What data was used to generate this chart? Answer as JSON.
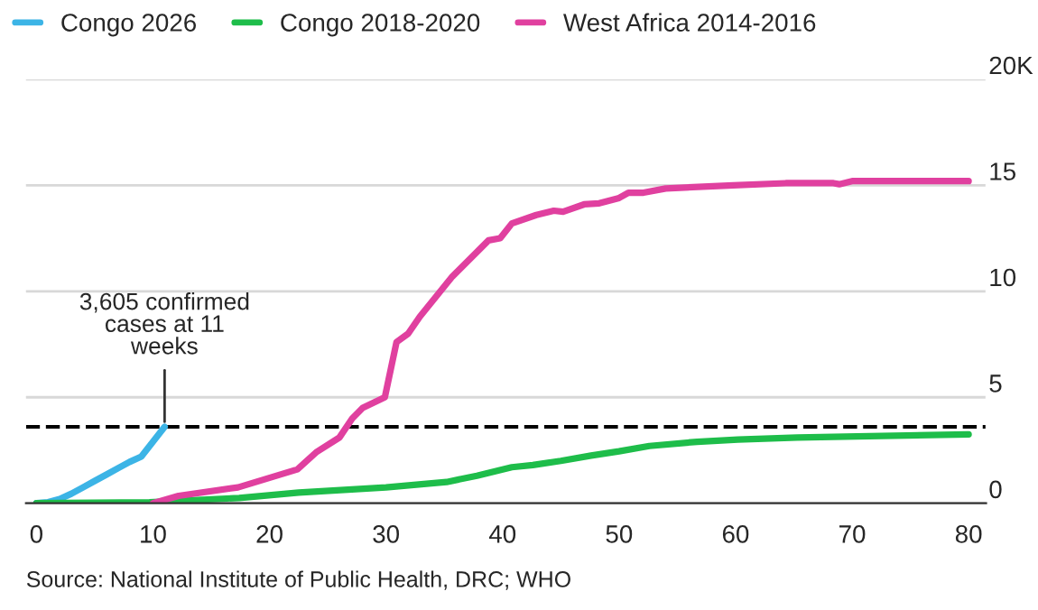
{
  "chart_data": {
    "type": "line",
    "series": [
      {
        "name": "Congo 2026",
        "color": "#3cb4e6",
        "x": [
          0,
          1,
          2,
          3,
          4,
          5,
          6,
          7,
          8,
          9,
          10,
          11
        ],
        "values": [
          0,
          0.05,
          0.2,
          0.45,
          0.75,
          1.05,
          1.35,
          1.65,
          1.95,
          2.2,
          2.9,
          3.605
        ]
      },
      {
        "name": "Congo 2018-2020",
        "color": "#1ebd4a",
        "x": [
          0,
          9.7,
          17.4,
          22.5,
          30,
          35.2,
          37.8,
          40.8,
          42.6,
          45,
          47.6,
          50,
          52.6,
          56.7,
          60.2,
          65.3,
          70.4,
          80
        ],
        "values": [
          0,
          0.05,
          0.25,
          0.5,
          0.75,
          1.0,
          1.3,
          1.7,
          1.8,
          2.0,
          2.25,
          2.45,
          2.7,
          2.9,
          3.0,
          3.1,
          3.15,
          3.25
        ]
      },
      {
        "name": "West Africa 2014-2016",
        "color": "#e0409f",
        "x": [
          10,
          12.2,
          17.3,
          22.4,
          24,
          26,
          27.1,
          28,
          29.9,
          30.9,
          31.9,
          32.9,
          35.7,
          38.8,
          39.8,
          40.8,
          42.9,
          44.4,
          45.2,
          47,
          48.3,
          50,
          50.8,
          52.1,
          54,
          59.8,
          64.3,
          68.4,
          68.9,
          70,
          80
        ],
        "values": [
          0,
          0.35,
          0.75,
          1.6,
          2.4,
          3.1,
          4.0,
          4.5,
          5.0,
          7.6,
          8.0,
          8.8,
          10.7,
          12.4,
          12.5,
          13.2,
          13.6,
          13.8,
          13.75,
          14.1,
          14.15,
          14.4,
          14.65,
          14.65,
          14.85,
          15.0,
          15.1,
          15.1,
          15.05,
          15.2,
          15.2
        ]
      }
    ],
    "xlim": [
      -0.9,
      81.5
    ],
    "xticks": [
      0,
      10,
      20,
      30,
      40,
      50,
      60,
      70,
      80
    ],
    "ylim": [
      0,
      20
    ],
    "yticks": [
      0,
      5,
      10,
      15,
      {
        "value": 20,
        "label": "20K"
      }
    ],
    "grid": "y",
    "legend": "top left",
    "line_style": "solid",
    "marker": "none",
    "ref_lines": [
      {
        "axis": "y",
        "value": 3.605,
        "color": "#000000",
        "line_style": "dashed"
      }
    ],
    "annotations": [
      {
        "text": "3,605 confirmed cases at 11 weeks",
        "x": 11,
        "y": 3.605
      },
      "Source: National Institute of Public Health, DRC; WHO"
    ]
  }
}
